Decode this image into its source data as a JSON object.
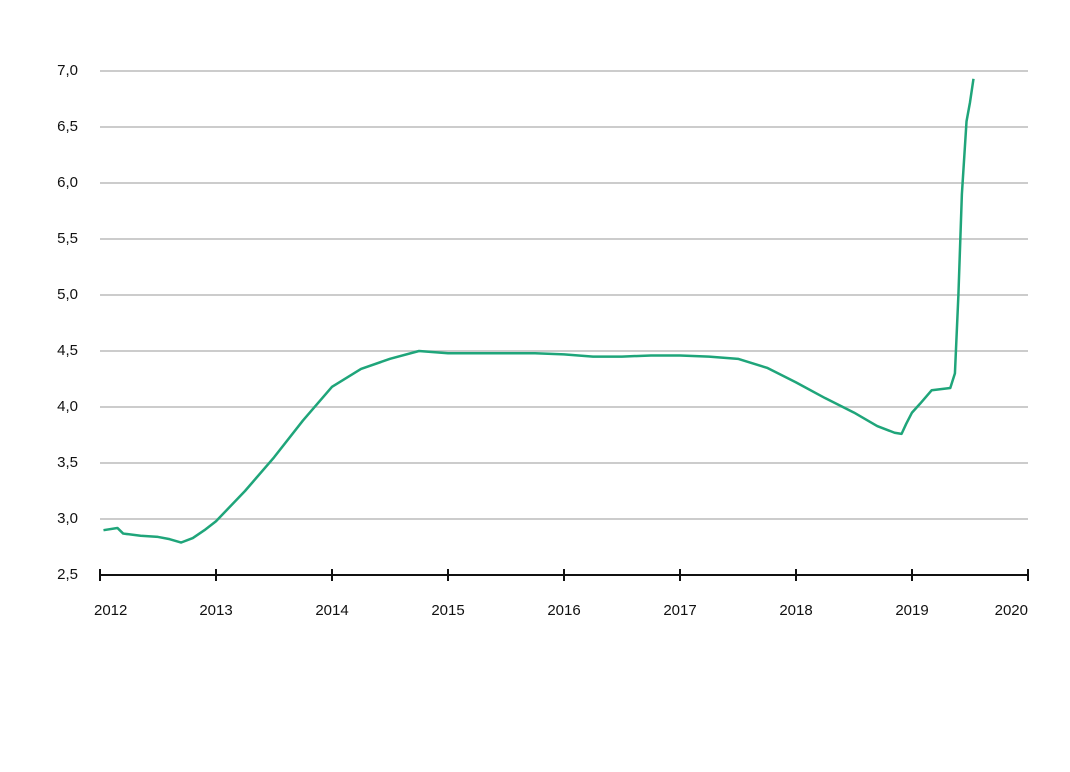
{
  "chart_data": {
    "type": "line",
    "x": [
      2012.03,
      2012.15,
      2012.2,
      2012.35,
      2012.5,
      2012.6,
      2012.7,
      2012.8,
      2012.9,
      2013.0,
      2013.25,
      2013.5,
      2013.75,
      2014.0,
      2014.25,
      2014.5,
      2014.75,
      2015.0,
      2015.25,
      2015.5,
      2015.75,
      2016.0,
      2016.25,
      2016.5,
      2016.75,
      2017.0,
      2017.25,
      2017.5,
      2017.75,
      2018.0,
      2018.25,
      2018.5,
      2018.7,
      2018.85,
      2018.91,
      2018.95,
      2019.0,
      2019.07,
      2019.17,
      2019.33,
      2019.37,
      2019.4,
      2019.43,
      2019.47,
      2019.5,
      2019.53
    ],
    "series": [
      {
        "color": "#1fa57a",
        "values": [
          2.9,
          2.92,
          2.87,
          2.85,
          2.84,
          2.82,
          2.79,
          2.83,
          2.9,
          2.98,
          3.25,
          3.55,
          3.88,
          4.18,
          4.34,
          4.43,
          4.5,
          4.48,
          4.48,
          4.48,
          4.48,
          4.47,
          4.45,
          4.45,
          4.46,
          4.46,
          4.45,
          4.43,
          4.35,
          4.22,
          4.08,
          3.95,
          3.83,
          3.77,
          3.76,
          3.85,
          3.95,
          4.03,
          4.15,
          4.17,
          4.3,
          5.0,
          5.9,
          6.55,
          6.72,
          6.93
        ]
      }
    ],
    "xlim": [
      2012,
      2020
    ],
    "xticks": [
      2012,
      2013,
      2014,
      2015,
      2016,
      2017,
      2018,
      2019,
      2020
    ],
    "ylim": [
      2.5,
      7.0
    ],
    "yticks": [
      {
        "value": 2.5,
        "label": "2,5"
      },
      {
        "value": 3.0,
        "label": "3,0"
      },
      {
        "value": 3.5,
        "label": "3,5"
      },
      {
        "value": 4.0,
        "label": "4,0"
      },
      {
        "value": 4.5,
        "label": "4,5"
      },
      {
        "value": 5.0,
        "label": "5,0"
      },
      {
        "value": 5.5,
        "label": "5,5"
      },
      {
        "value": 6.0,
        "label": "6,0"
      },
      {
        "value": 6.5,
        "label": "6,5"
      },
      {
        "value": 7.0,
        "label": "7,0"
      }
    ],
    "grid": true
  }
}
